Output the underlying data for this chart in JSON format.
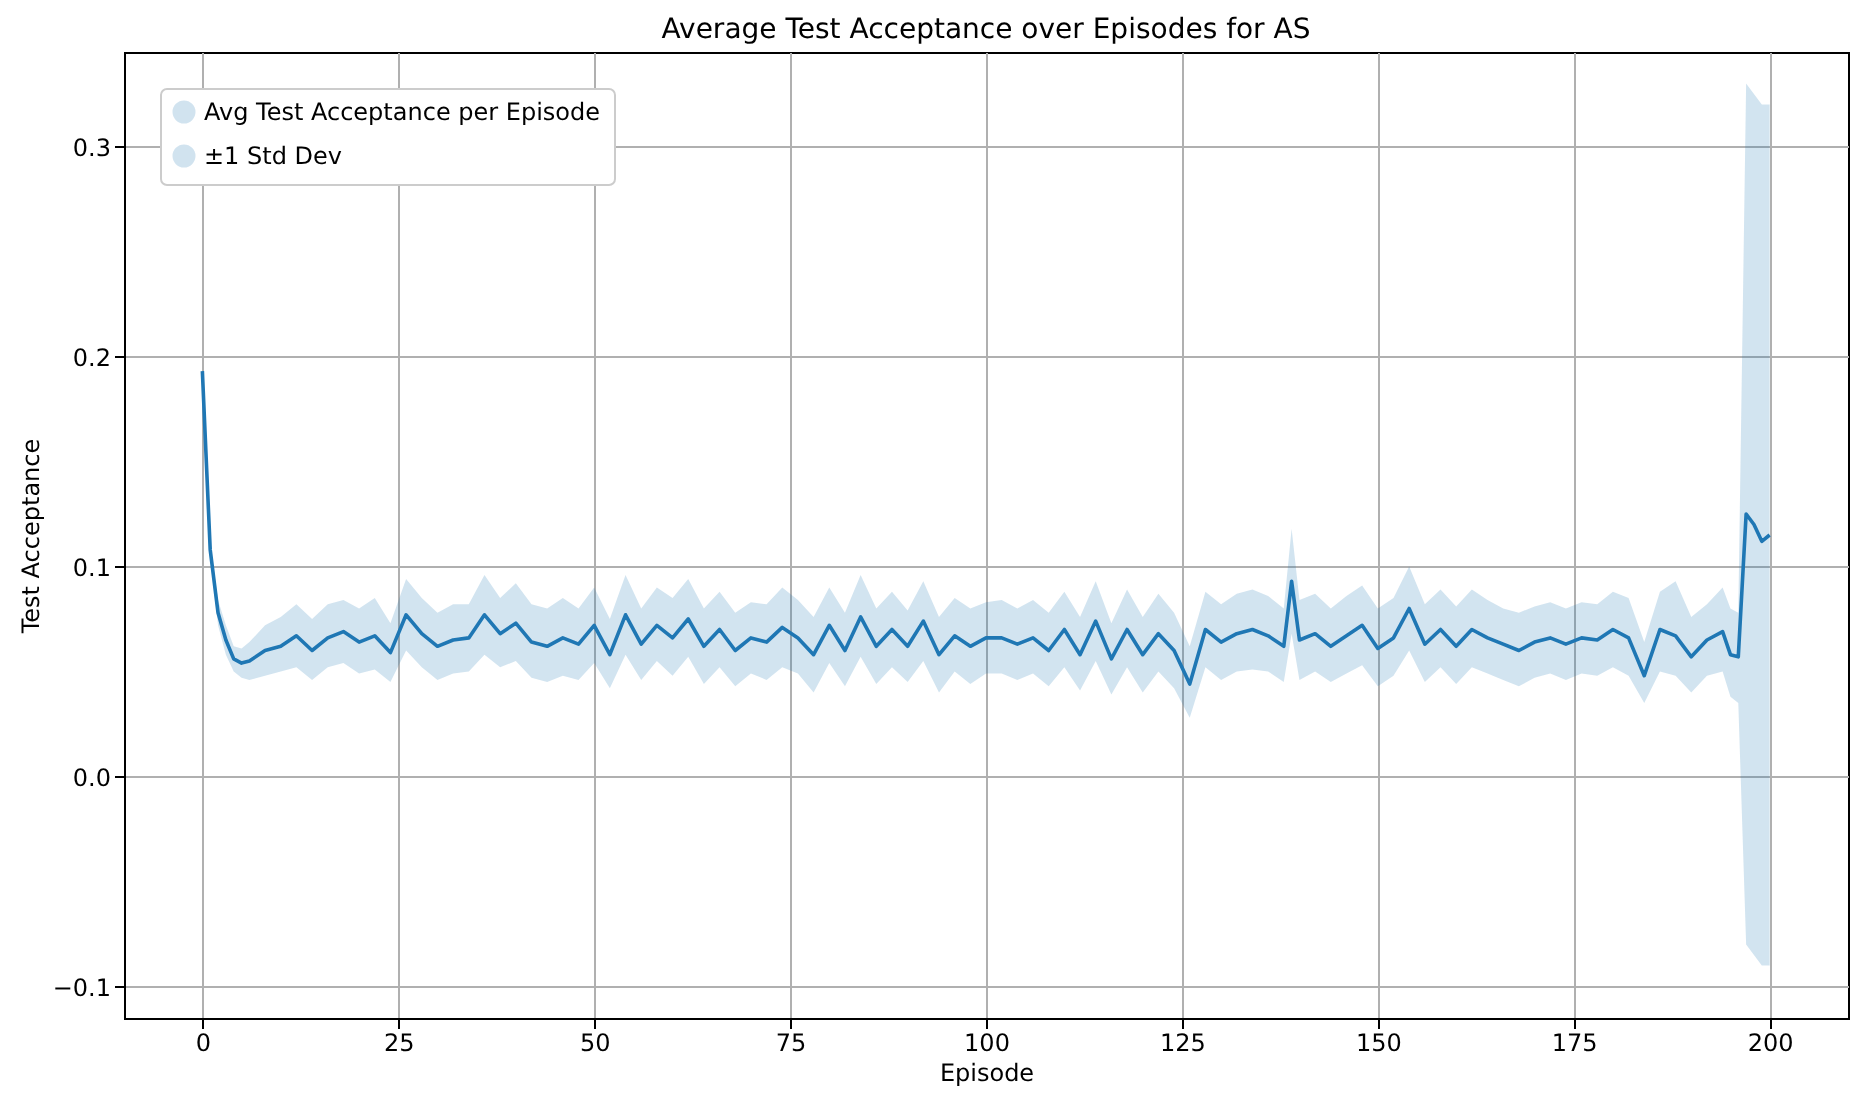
{
  "chart_data": {
    "type": "line",
    "title": "Average Test Acceptance over Episodes for AS",
    "xlabel": "Episode",
    "ylabel": "Test Acceptance",
    "x": [
      0,
      1,
      2,
      3,
      4,
      5,
      6,
      8,
      10,
      12,
      14,
      16,
      18,
      20,
      22,
      24,
      26,
      28,
      30,
      32,
      34,
      36,
      38,
      40,
      42,
      44,
      46,
      48,
      50,
      52,
      54,
      56,
      58,
      60,
      62,
      64,
      66,
      68,
      70,
      72,
      74,
      76,
      78,
      80,
      82,
      84,
      86,
      88,
      90,
      92,
      94,
      96,
      98,
      100,
      102,
      104,
      106,
      108,
      110,
      112,
      114,
      116,
      118,
      120,
      122,
      124,
      126,
      128,
      130,
      132,
      134,
      136,
      138,
      139,
      140,
      142,
      144,
      146,
      148,
      150,
      152,
      154,
      156,
      158,
      160,
      162,
      164,
      166,
      168,
      170,
      172,
      174,
      176,
      178,
      180,
      182,
      184,
      186,
      188,
      190,
      192,
      194,
      195,
      196,
      197,
      198,
      199,
      200
    ],
    "series": [
      {
        "name": "Avg Test Acceptance per Episode",
        "color": "#1f77b4",
        "values": [
          0.193,
          0.108,
          0.078,
          0.065,
          0.056,
          0.054,
          0.055,
          0.06,
          0.062,
          0.067,
          0.06,
          0.066,
          0.069,
          0.064,
          0.067,
          0.059,
          0.077,
          0.068,
          0.062,
          0.065,
          0.066,
          0.077,
          0.068,
          0.073,
          0.064,
          0.062,
          0.066,
          0.063,
          0.072,
          0.058,
          0.077,
          0.063,
          0.072,
          0.066,
          0.075,
          0.062,
          0.07,
          0.06,
          0.066,
          0.064,
          0.071,
          0.066,
          0.058,
          0.072,
          0.06,
          0.076,
          0.062,
          0.07,
          0.062,
          0.074,
          0.058,
          0.067,
          0.062,
          0.066,
          0.066,
          0.063,
          0.066,
          0.06,
          0.07,
          0.058,
          0.074,
          0.056,
          0.07,
          0.058,
          0.068,
          0.06,
          0.044,
          0.07,
          0.064,
          0.068,
          0.07,
          0.067,
          0.062,
          0.093,
          0.065,
          0.068,
          0.062,
          0.067,
          0.072,
          0.061,
          0.066,
          0.08,
          0.063,
          0.07,
          0.062,
          0.07,
          0.066,
          0.063,
          0.06,
          0.064,
          0.066,
          0.063,
          0.066,
          0.065,
          0.07,
          0.066,
          0.048,
          0.07,
          0.067,
          0.057,
          0.065,
          0.069,
          0.058,
          0.057,
          0.125,
          0.12,
          0.112,
          0.115
        ],
        "lower": [
          0.193,
          0.105,
          0.072,
          0.058,
          0.05,
          0.047,
          0.046,
          0.048,
          0.05,
          0.052,
          0.046,
          0.052,
          0.054,
          0.049,
          0.051,
          0.045,
          0.06,
          0.052,
          0.046,
          0.049,
          0.05,
          0.058,
          0.052,
          0.055,
          0.047,
          0.045,
          0.048,
          0.046,
          0.054,
          0.042,
          0.058,
          0.046,
          0.055,
          0.048,
          0.057,
          0.044,
          0.052,
          0.043,
          0.049,
          0.046,
          0.052,
          0.049,
          0.04,
          0.054,
          0.043,
          0.057,
          0.044,
          0.052,
          0.045,
          0.055,
          0.04,
          0.05,
          0.044,
          0.049,
          0.049,
          0.046,
          0.049,
          0.043,
          0.052,
          0.041,
          0.055,
          0.039,
          0.052,
          0.04,
          0.05,
          0.042,
          0.028,
          0.052,
          0.046,
          0.05,
          0.051,
          0.05,
          0.045,
          0.068,
          0.046,
          0.05,
          0.045,
          0.049,
          0.053,
          0.043,
          0.048,
          0.06,
          0.045,
          0.052,
          0.044,
          0.052,
          0.049,
          0.046,
          0.043,
          0.047,
          0.049,
          0.046,
          0.049,
          0.048,
          0.052,
          0.048,
          0.035,
          0.05,
          0.048,
          0.04,
          0.048,
          0.05,
          0.038,
          0.035,
          -0.08,
          -0.085,
          -0.09,
          -0.09
        ],
        "upper": [
          0.193,
          0.111,
          0.084,
          0.072,
          0.062,
          0.061,
          0.064,
          0.072,
          0.076,
          0.082,
          0.075,
          0.082,
          0.084,
          0.08,
          0.085,
          0.073,
          0.094,
          0.085,
          0.078,
          0.082,
          0.082,
          0.096,
          0.085,
          0.092,
          0.082,
          0.08,
          0.085,
          0.08,
          0.09,
          0.075,
          0.096,
          0.08,
          0.09,
          0.085,
          0.094,
          0.08,
          0.088,
          0.078,
          0.083,
          0.082,
          0.09,
          0.084,
          0.076,
          0.09,
          0.078,
          0.096,
          0.08,
          0.088,
          0.079,
          0.093,
          0.076,
          0.085,
          0.08,
          0.083,
          0.084,
          0.08,
          0.084,
          0.078,
          0.088,
          0.076,
          0.093,
          0.073,
          0.089,
          0.076,
          0.087,
          0.078,
          0.062,
          0.088,
          0.082,
          0.087,
          0.089,
          0.086,
          0.08,
          0.118,
          0.084,
          0.087,
          0.08,
          0.086,
          0.091,
          0.08,
          0.085,
          0.1,
          0.082,
          0.089,
          0.081,
          0.089,
          0.084,
          0.08,
          0.078,
          0.081,
          0.083,
          0.08,
          0.083,
          0.082,
          0.088,
          0.085,
          0.064,
          0.088,
          0.093,
          0.076,
          0.082,
          0.09,
          0.08,
          0.078,
          0.33,
          0.325,
          0.32,
          0.32
        ]
      }
    ],
    "xlim": [
      -10,
      210
    ],
    "xticks": [
      0,
      25,
      50,
      75,
      100,
      125,
      150,
      175,
      200
    ],
    "ylim": [
      -0.115,
      0.345
    ],
    "yticks": [
      -0.1,
      {
        "value": 0,
        "label": "0.0"
      },
      0.1,
      0.2,
      0.3
    ],
    "annotations": [
      "±1 Std Dev"
    ],
    "grid": true,
    "legend": "top left",
    "line_style": "solid"
  }
}
